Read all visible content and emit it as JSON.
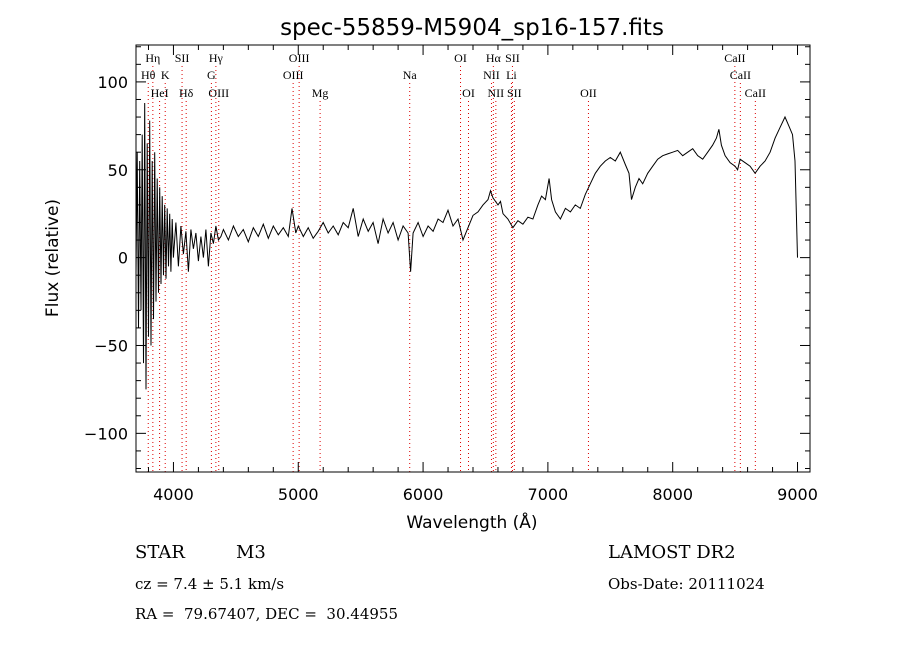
{
  "chart_data": {
    "type": "line",
    "title": "spec-55859-M5904_sp16-157.fits",
    "xlabel": "Wavelength (Å)",
    "ylabel": "Flux (relative)",
    "xlim": [
      3700,
      9100
    ],
    "ylim": [
      -122,
      121
    ],
    "xticks": [
      4000,
      5000,
      6000,
      7000,
      8000,
      9000
    ],
    "yticks": [
      -100,
      -50,
      0,
      50,
      100
    ],
    "grid": false,
    "series": [
      {
        "points": [
          [
            3700,
            -10
          ],
          [
            3710,
            60
          ],
          [
            3720,
            -40
          ],
          [
            3730,
            55
          ],
          [
            3740,
            -30
          ],
          [
            3750,
            70
          ],
          [
            3760,
            -60
          ],
          [
            3770,
            88
          ],
          [
            3780,
            -75
          ],
          [
            3790,
            65
          ],
          [
            3800,
            -45
          ],
          [
            3810,
            78
          ],
          [
            3820,
            -50
          ],
          [
            3830,
            55
          ],
          [
            3840,
            -35
          ],
          [
            3850,
            60
          ],
          [
            3860,
            -25
          ],
          [
            3870,
            45
          ],
          [
            3880,
            -20
          ],
          [
            3890,
            40
          ],
          [
            3900,
            -15
          ],
          [
            3910,
            35
          ],
          [
            3920,
            -10
          ],
          [
            3930,
            30
          ],
          [
            3940,
            -12
          ],
          [
            3950,
            28
          ],
          [
            3960,
            -5
          ],
          [
            3970,
            25
          ],
          [
            3980,
            -8
          ],
          [
            3990,
            22
          ],
          [
            4000,
            0
          ],
          [
            4020,
            20
          ],
          [
            4040,
            -5
          ],
          [
            4060,
            18
          ],
          [
            4080,
            2
          ],
          [
            4100,
            15
          ],
          [
            4120,
            -8
          ],
          [
            4140,
            16
          ],
          [
            4160,
            5
          ],
          [
            4180,
            14
          ],
          [
            4200,
            -2
          ],
          [
            4220,
            12
          ],
          [
            4240,
            0
          ],
          [
            4260,
            16
          ],
          [
            4280,
            -5
          ],
          [
            4300,
            14
          ],
          [
            4320,
            8
          ],
          [
            4340,
            18
          ],
          [
            4360,
            10
          ],
          [
            4380,
            12
          ],
          [
            4400,
            16
          ],
          [
            4440,
            10
          ],
          [
            4480,
            18
          ],
          [
            4520,
            12
          ],
          [
            4560,
            16
          ],
          [
            4600,
            9
          ],
          [
            4640,
            17
          ],
          [
            4680,
            12
          ],
          [
            4720,
            19
          ],
          [
            4760,
            11
          ],
          [
            4800,
            18
          ],
          [
            4840,
            13
          ],
          [
            4880,
            17
          ],
          [
            4920,
            12
          ],
          [
            4950,
            28
          ],
          [
            4980,
            14
          ],
          [
            5000,
            18
          ],
          [
            5040,
            12
          ],
          [
            5080,
            17
          ],
          [
            5120,
            11
          ],
          [
            5160,
            15
          ],
          [
            5200,
            20
          ],
          [
            5240,
            14
          ],
          [
            5280,
            18
          ],
          [
            5320,
            13
          ],
          [
            5360,
            20
          ],
          [
            5400,
            17
          ],
          [
            5440,
            28
          ],
          [
            5480,
            12
          ],
          [
            5520,
            22
          ],
          [
            5560,
            15
          ],
          [
            5600,
            20
          ],
          [
            5640,
            8
          ],
          [
            5680,
            22
          ],
          [
            5720,
            14
          ],
          [
            5760,
            20
          ],
          [
            5800,
            10
          ],
          [
            5840,
            18
          ],
          [
            5880,
            14
          ],
          [
            5900,
            -8
          ],
          [
            5920,
            14
          ],
          [
            5960,
            20
          ],
          [
            6000,
            12
          ],
          [
            6040,
            18
          ],
          [
            6080,
            15
          ],
          [
            6120,
            22
          ],
          [
            6160,
            20
          ],
          [
            6200,
            27
          ],
          [
            6240,
            18
          ],
          [
            6280,
            22
          ],
          [
            6320,
            10
          ],
          [
            6360,
            17
          ],
          [
            6400,
            24
          ],
          [
            6440,
            26
          ],
          [
            6480,
            30
          ],
          [
            6520,
            33
          ],
          [
            6540,
            38
          ],
          [
            6560,
            34
          ],
          [
            6600,
            30
          ],
          [
            6620,
            32
          ],
          [
            6640,
            25
          ],
          [
            6680,
            22
          ],
          [
            6720,
            17
          ],
          [
            6760,
            21
          ],
          [
            6800,
            19
          ],
          [
            6840,
            23
          ],
          [
            6880,
            22
          ],
          [
            6920,
            30
          ],
          [
            6950,
            35
          ],
          [
            6980,
            33
          ],
          [
            7010,
            45
          ],
          [
            7030,
            33
          ],
          [
            7060,
            26
          ],
          [
            7100,
            22
          ],
          [
            7140,
            28
          ],
          [
            7180,
            26
          ],
          [
            7220,
            30
          ],
          [
            7260,
            28
          ],
          [
            7300,
            36
          ],
          [
            7340,
            42
          ],
          [
            7380,
            48
          ],
          [
            7420,
            52
          ],
          [
            7460,
            55
          ],
          [
            7500,
            57
          ],
          [
            7540,
            55
          ],
          [
            7580,
            60
          ],
          [
            7620,
            53
          ],
          [
            7650,
            48
          ],
          [
            7670,
            33
          ],
          [
            7700,
            40
          ],
          [
            7730,
            45
          ],
          [
            7760,
            42
          ],
          [
            7800,
            48
          ],
          [
            7840,
            52
          ],
          [
            7880,
            56
          ],
          [
            7920,
            58
          ],
          [
            7960,
            59
          ],
          [
            8000,
            60
          ],
          [
            8040,
            61
          ],
          [
            8080,
            58
          ],
          [
            8120,
            60
          ],
          [
            8160,
            62
          ],
          [
            8200,
            58
          ],
          [
            8240,
            56
          ],
          [
            8280,
            60
          ],
          [
            8320,
            64
          ],
          [
            8350,
            68
          ],
          [
            8370,
            73
          ],
          [
            8390,
            64
          ],
          [
            8420,
            58
          ],
          [
            8460,
            54
          ],
          [
            8500,
            52
          ],
          [
            8520,
            50
          ],
          [
            8540,
            56
          ],
          [
            8580,
            54
          ],
          [
            8620,
            52
          ],
          [
            8660,
            48
          ],
          [
            8700,
            52
          ],
          [
            8740,
            55
          ],
          [
            8780,
            60
          ],
          [
            8820,
            68
          ],
          [
            8860,
            74
          ],
          [
            8900,
            80
          ],
          [
            8930,
            75
          ],
          [
            8960,
            70
          ],
          [
            8980,
            55
          ],
          [
            9000,
            0
          ]
        ]
      }
    ],
    "lines": [
      {
        "label": "Hη",
        "x": 3835,
        "row": 0
      },
      {
        "label": "Hθ",
        "x": 3798,
        "row": 1
      },
      {
        "label": "HeI",
        "x": 3889,
        "row": 2
      },
      {
        "label": "K",
        "x": 3934,
        "row": 1
      },
      {
        "label": "SII",
        "x": 4069,
        "row": 0
      },
      {
        "label": "Hδ",
        "x": 4102,
        "row": 2
      },
      {
        "label": "Hγ",
        "x": 4340,
        "row": 0
      },
      {
        "label": "G",
        "x": 4304,
        "row": 1
      },
      {
        "label": "OIII",
        "x": 4363,
        "row": 2
      },
      {
        "label": "OIII",
        "x": 5007,
        "row": 0
      },
      {
        "label": "OIII",
        "x": 4959,
        "row": 1
      },
      {
        "label": "Mg",
        "x": 5175,
        "row": 2
      },
      {
        "label": "Na",
        "x": 5893,
        "row": 1
      },
      {
        "label": "OI",
        "x": 6300,
        "row": 0
      },
      {
        "label": "OI",
        "x": 6364,
        "row": 2
      },
      {
        "label": "Hα",
        "x": 6563,
        "row": 0
      },
      {
        "label": "SII",
        "x": 6716,
        "row": 0
      },
      {
        "label": "NII",
        "x": 6548,
        "row": 1
      },
      {
        "label": "Li",
        "x": 6708,
        "row": 1
      },
      {
        "label": "NII",
        "x": 6583,
        "row": 2
      },
      {
        "label": "SII",
        "x": 6731,
        "row": 2
      },
      {
        "label": "OII",
        "x": 7325,
        "row": 2
      },
      {
        "label": "CaII",
        "x": 8498,
        "row": 0
      },
      {
        "label": "CaII",
        "x": 8542,
        "row": 1
      },
      {
        "label": "CaII",
        "x": 8662,
        "row": 2
      }
    ]
  },
  "info": {
    "class": "STAR",
    "subclass": "M3",
    "survey": "LAMOST DR2",
    "cz": "cz = 7.4 ± 5.1 km/s",
    "obsdate": "Obs-Date: 20111024",
    "radec": "RA =  79.67407, DEC =  30.44955"
  }
}
